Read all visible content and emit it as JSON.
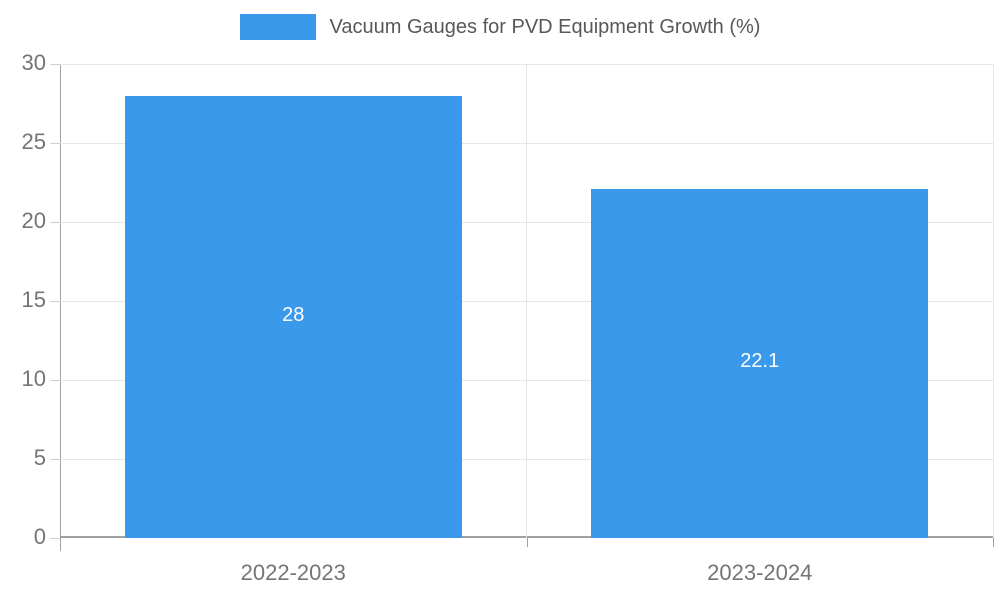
{
  "chart_data": {
    "type": "bar",
    "title": "Vacuum Gauges for PVD Equipment Growth (%)",
    "legend": {
      "position": "top",
      "label": "Vacuum Gauges for PVD Equipment Growth (%)"
    },
    "categories": [
      "2022-2023",
      "2023-2024"
    ],
    "values": [
      28,
      22.1
    ],
    "value_labels": [
      "28",
      "22.1"
    ],
    "xlabel": "",
    "ylabel": "",
    "ylim": [
      0,
      30
    ],
    "yticks": [
      0,
      5,
      10,
      15,
      20,
      25,
      30
    ],
    "grid": true
  },
  "colors": {
    "bar": "#3B99EC",
    "grid": "#E6E6E6",
    "axis_left": "#A0A0A0",
    "axis_bottom": "#A0A0A0",
    "ytick_mark": "#D0D0D0",
    "xtick_mark": "#A0A0A0",
    "tick_text": "#757575",
    "legend_text": "#58585B",
    "value_text": "#FFFFFF"
  }
}
